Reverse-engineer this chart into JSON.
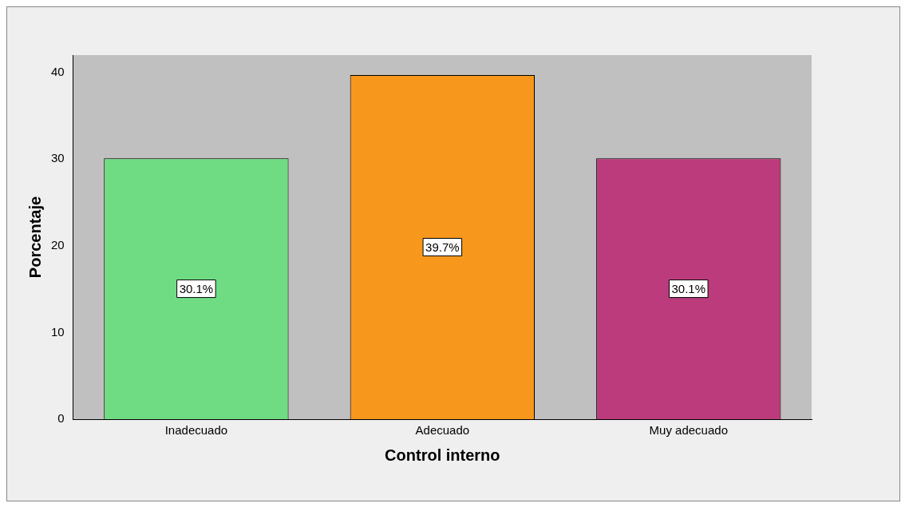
{
  "chart_data": {
    "type": "bar",
    "xlabel": "Control interno",
    "ylabel": "Porcentaje",
    "categories": [
      "Inadecuado",
      "Adecuado",
      "Muy adecuado"
    ],
    "values": [
      30.1,
      39.7,
      30.1
    ],
    "colors": [
      "#6fdc84",
      "#f7981d",
      "#bb3b7c"
    ],
    "value_labels": [
      "30.1%",
      "39.7%",
      "30.1%"
    ],
    "ylim": [
      0,
      42
    ],
    "yticks": [
      0,
      10,
      20,
      30,
      40
    ],
    "grid": false,
    "legend": false
  }
}
